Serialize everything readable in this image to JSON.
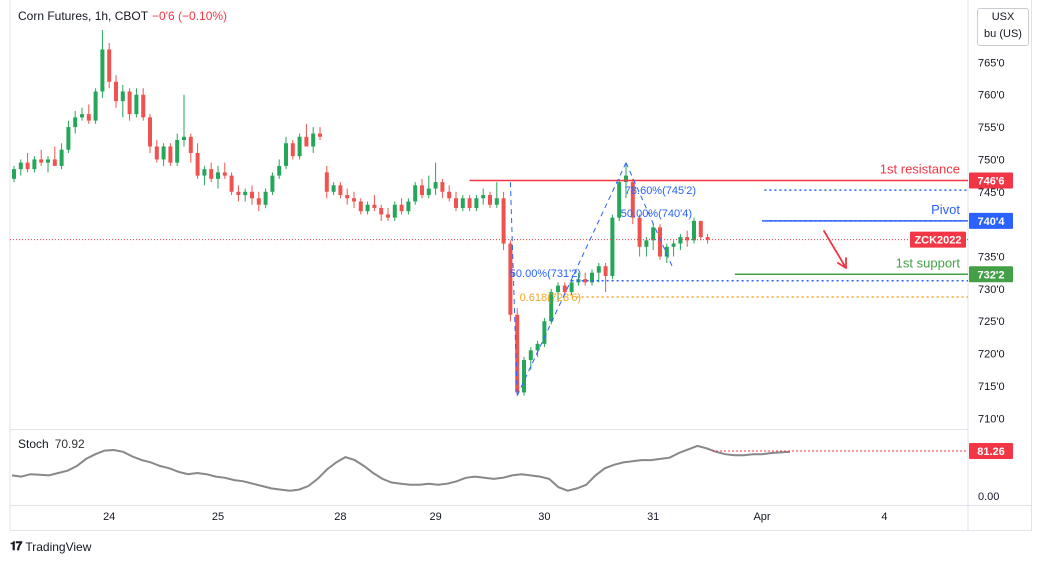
{
  "header": {
    "symbol": "Corn Futures, 1h, CBOT",
    "change": "−0'6 (−0.10%)"
  },
  "currency": {
    "line1": "USX",
    "line2": "bu (US)"
  },
  "footer": {
    "brand": "TradingView"
  },
  "stoch": {
    "label": "Stoch",
    "value": "70.92",
    "level_badge": "81.26",
    "axis_label": "0.00"
  },
  "colors": {
    "up": "#26a65b",
    "down": "#ef5350",
    "resistance": "#f23645",
    "pivot": "#2962ff",
    "support": "#43a047",
    "fib": "#2962ff",
    "fib_618": "#f5a623",
    "stoch_line": "#888888"
  },
  "chart_data": {
    "type": "candlestick",
    "price_axis": {
      "ticks": [
        "765'0",
        "760'0",
        "755'0",
        "750'0",
        "745'0",
        "735'0",
        "730'0",
        "725'0",
        "720'0",
        "715'0",
        "710'0"
      ],
      "tick_values": [
        765,
        760,
        755,
        750,
        745,
        735,
        730,
        725,
        720,
        715,
        710
      ],
      "ylim": [
        708.5,
        770
      ]
    },
    "time_axis": {
      "labels": [
        "24",
        "25",
        "28",
        "29",
        "30",
        "31",
        "Apr",
        "4"
      ],
      "label_bar_index": [
        14,
        30,
        48,
        62,
        78,
        94,
        110,
        128
      ]
    },
    "candles": [
      [
        747.0,
        749.0,
        746.5,
        748.5
      ],
      [
        748.5,
        750.0,
        747.5,
        749.5
      ],
      [
        749.5,
        751.0,
        748.0,
        748.5
      ],
      [
        748.5,
        750.5,
        748.0,
        750.0
      ],
      [
        750.0,
        751.5,
        749.0,
        749.5
      ],
      [
        749.5,
        750.5,
        748.0,
        750.0
      ],
      [
        750.0,
        752.0,
        749.5,
        749.0
      ],
      [
        749.0,
        752.5,
        748.5,
        751.5
      ],
      [
        751.5,
        756.0,
        751.0,
        755.0
      ],
      [
        755.0,
        757.5,
        754.0,
        756.5
      ],
      [
        756.5,
        758.0,
        756.0,
        757.0
      ],
      [
        757.0,
        758.5,
        755.5,
        756.0
      ],
      [
        756.0,
        761.0,
        755.5,
        760.5
      ],
      [
        760.5,
        770.0,
        759.5,
        767.0
      ],
      [
        767.0,
        768.0,
        761.0,
        762.0
      ],
      [
        762.0,
        763.0,
        758.0,
        759.0
      ],
      [
        759.0,
        761.5,
        756.5,
        760.5
      ],
      [
        760.5,
        761.0,
        756.0,
        757.0
      ],
      [
        757.0,
        761.0,
        756.5,
        760.0
      ],
      [
        760.0,
        761.0,
        756.0,
        756.5
      ],
      [
        756.5,
        757.0,
        751.0,
        752.0
      ],
      [
        752.0,
        753.0,
        749.5,
        750.0
      ],
      [
        750.0,
        752.5,
        749.0,
        752.0
      ],
      [
        752.0,
        752.5,
        749.0,
        749.5
      ],
      [
        749.5,
        754.0,
        749.0,
        753.0
      ],
      [
        753.0,
        760.0,
        752.0,
        753.5
      ],
      [
        753.5,
        754.0,
        749.5,
        751.0
      ],
      [
        751.0,
        752.5,
        747.0,
        747.5
      ],
      [
        747.5,
        749.0,
        746.0,
        748.5
      ],
      [
        748.5,
        749.5,
        746.5,
        747.0
      ],
      [
        747.0,
        749.0,
        745.5,
        748.0
      ],
      [
        748.0,
        749.5,
        747.0,
        747.5
      ],
      [
        747.5,
        748.0,
        744.5,
        745.0
      ],
      [
        745.0,
        746.0,
        743.5,
        744.5
      ],
      [
        744.5,
        745.5,
        743.5,
        745.0
      ],
      [
        745.0,
        746.0,
        743.0,
        744.0
      ],
      [
        744.0,
        745.0,
        742.0,
        743.0
      ],
      [
        743.0,
        745.5,
        742.5,
        745.0
      ],
      [
        745.0,
        748.0,
        744.5,
        747.5
      ],
      [
        747.5,
        750.0,
        747.0,
        749.0
      ],
      [
        749.0,
        753.5,
        748.5,
        752.5
      ],
      [
        752.5,
        753.0,
        750.0,
        750.5
      ],
      [
        750.5,
        754.0,
        750.0,
        753.5
      ],
      [
        753.5,
        755.5,
        752.5,
        752.0
      ],
      [
        752.0,
        755.0,
        751.0,
        754.0
      ],
      [
        754.0,
        755.0,
        753.0,
        753.5
      ],
      [
        748.0,
        749.0,
        744.0,
        745.0
      ],
      [
        745.0,
        746.5,
        744.5,
        746.0
      ],
      [
        746.0,
        746.5,
        744.0,
        744.5
      ],
      [
        744.5,
        745.5,
        743.0,
        744.0
      ],
      [
        744.0,
        745.0,
        742.5,
        743.5
      ],
      [
        743.5,
        744.0,
        741.5,
        742.0
      ],
      [
        742.0,
        743.5,
        741.5,
        743.0
      ],
      [
        743.0,
        744.5,
        742.0,
        742.5
      ],
      [
        742.5,
        743.0,
        740.5,
        741.5
      ],
      [
        741.5,
        742.5,
        740.5,
        741.0
      ],
      [
        741.0,
        743.5,
        740.5,
        743.0
      ],
      [
        743.0,
        744.0,
        741.5,
        742.0
      ],
      [
        742.0,
        744.0,
        741.5,
        743.5
      ],
      [
        743.5,
        746.5,
        743.0,
        746.0
      ],
      [
        746.0,
        747.0,
        744.0,
        744.5
      ],
      [
        744.5,
        747.5,
        744.0,
        745.5
      ],
      [
        745.5,
        749.5,
        744.5,
        746.5
      ],
      [
        746.5,
        747.0,
        744.0,
        745.0
      ],
      [
        745.0,
        746.0,
        743.5,
        744.0
      ],
      [
        744.0,
        745.0,
        742.0,
        742.5
      ],
      [
        742.5,
        744.5,
        742.0,
        744.0
      ],
      [
        744.0,
        744.5,
        742.0,
        742.5
      ],
      [
        742.5,
        744.5,
        742.0,
        744.0
      ],
      [
        744.0,
        745.5,
        743.0,
        744.5
      ],
      [
        744.5,
        745.0,
        742.5,
        743.0
      ],
      [
        743.0,
        746.5,
        742.5,
        744.0
      ],
      [
        744.0,
        745.0,
        736.0,
        737.0
      ],
      [
        737.0,
        737.5,
        725.0,
        726.0
      ],
      [
        726.0,
        727.0,
        713.5,
        714.0
      ],
      [
        714.0,
        719.5,
        713.5,
        719.0
      ],
      [
        719.0,
        721.0,
        717.5,
        720.5
      ],
      [
        720.5,
        722.0,
        719.5,
        721.5
      ],
      [
        721.5,
        725.5,
        721.0,
        725.0
      ],
      [
        725.0,
        730.0,
        724.5,
        729.5
      ],
      [
        729.5,
        731.0,
        728.0,
        730.5
      ],
      [
        730.5,
        731.0,
        729.0,
        729.5
      ],
      [
        729.5,
        731.5,
        729.0,
        731.0
      ],
      [
        731.0,
        732.5,
        730.5,
        731.5
      ],
      [
        731.5,
        732.5,
        730.5,
        731.0
      ],
      [
        731.0,
        733.0,
        730.5,
        732.5
      ],
      [
        732.5,
        734.0,
        731.0,
        733.5
      ],
      [
        733.5,
        734.0,
        729.5,
        732.0
      ],
      [
        732.0,
        741.5,
        731.5,
        741.0
      ],
      [
        741.0,
        747.0,
        740.5,
        746.5
      ],
      [
        746.5,
        749.5,
        744.0,
        747.5
      ],
      [
        746.5,
        747.0,
        740.0,
        741.0
      ],
      [
        741.0,
        741.5,
        735.0,
        736.5
      ],
      [
        736.5,
        738.0,
        735.0,
        737.5
      ],
      [
        737.5,
        740.0,
        736.0,
        739.5
      ],
      [
        739.5,
        740.0,
        734.5,
        735.0
      ],
      [
        735.0,
        737.0,
        734.0,
        736.5
      ],
      [
        736.5,
        737.5,
        735.0,
        737.0
      ],
      [
        737.0,
        738.5,
        736.0,
        738.0
      ],
      [
        738.0,
        739.0,
        736.5,
        737.5
      ],
      [
        737.5,
        741.0,
        737.0,
        740.5
      ],
      [
        740.5,
        740.5,
        737.5,
        738.0
      ],
      [
        738.0,
        738.5,
        737.0,
        737.6
      ]
    ],
    "horizontal_levels": [
      {
        "label": "1st resistance",
        "price": 746.75,
        "price_label": "746'6",
        "style": "solid"
      },
      {
        "label": "Pivot",
        "price": 740.5,
        "price_label": "740'4",
        "style": "solid"
      },
      {
        "label": "1st support",
        "price": 732.25,
        "price_label": "732'2",
        "style": "solid"
      },
      {
        "label": "ZCK2022",
        "price": 737.6,
        "price_label": "ZCK2022",
        "style": "dotted"
      }
    ],
    "fib_labels": [
      {
        "text": "78.60%(745'2)",
        "price": 745.25
      },
      {
        "text": "50.00%(740'4)",
        "price": 740.5
      },
      {
        "text": "50.00%(731'2)",
        "price": 731.25
      },
      {
        "text": "0.618(728'6)",
        "price": 728.75
      }
    ],
    "stochastic": {
      "value": 70.92,
      "overbought_level": 81.26,
      "points": [
        40,
        38,
        42,
        41,
        40,
        44,
        48,
        56,
        68,
        76,
        82,
        83,
        80,
        72,
        66,
        62,
        56,
        52,
        46,
        42,
        44,
        42,
        38,
        36,
        32,
        30,
        26,
        22,
        18,
        16,
        14,
        16,
        22,
        34,
        50,
        62,
        71,
        66,
        56,
        44,
        34,
        28,
        26,
        24,
        24,
        26,
        24,
        26,
        30,
        36,
        38,
        36,
        34,
        36,
        40,
        42,
        40,
        38,
        34,
        20,
        14,
        18,
        24,
        40,
        52,
        58,
        62,
        64,
        66,
        66,
        68,
        70,
        78,
        84,
        90,
        86,
        80,
        76,
        74,
        74,
        76,
        76,
        78,
        79,
        80
      ]
    }
  }
}
